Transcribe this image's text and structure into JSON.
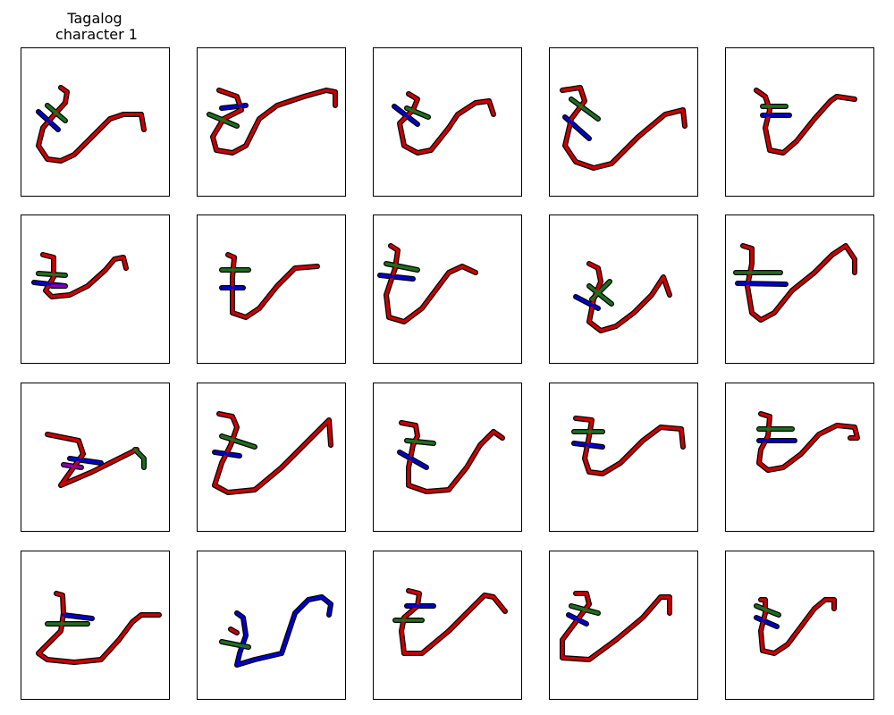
{
  "title_lines": [
    "Tagalog",
    "character 1"
  ]
}
